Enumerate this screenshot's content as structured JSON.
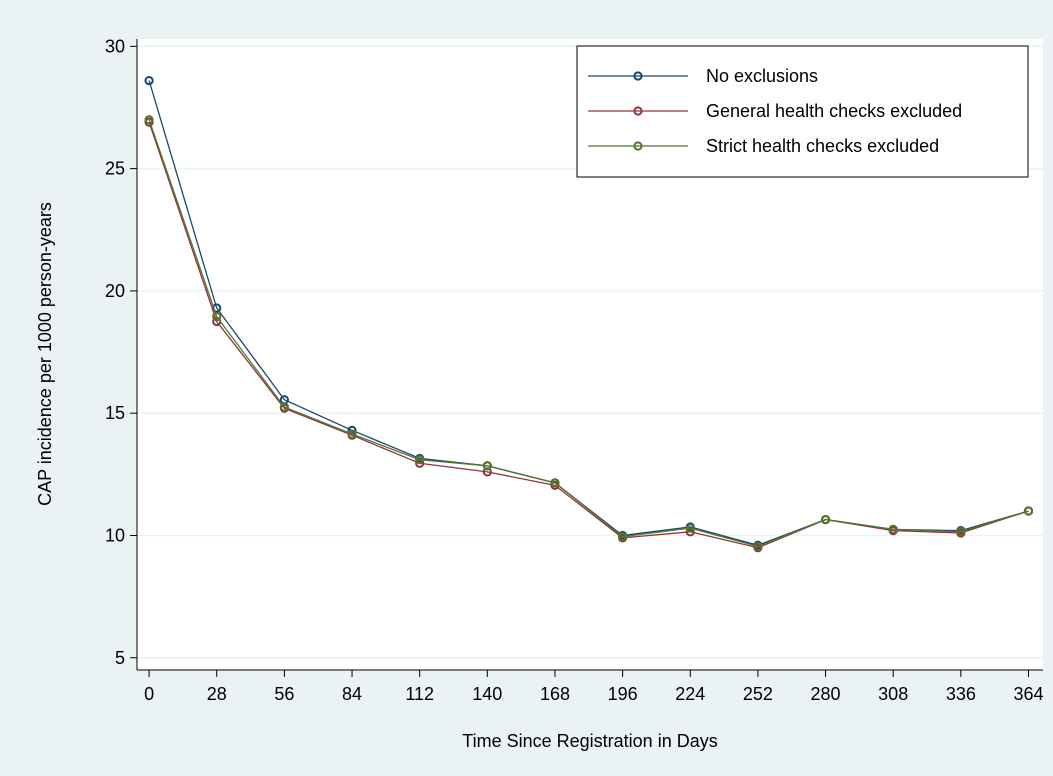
{
  "chart_data": {
    "type": "line",
    "title": "",
    "xlabel": "Time Since Registration in Days",
    "ylabel": "CAP incidence per 1000 person-years",
    "x": [
      0,
      28,
      56,
      84,
      112,
      140,
      168,
      196,
      224,
      252,
      280,
      308,
      336,
      364
    ],
    "xticks": [
      "0",
      "28",
      "56",
      "84",
      "112",
      "140",
      "168",
      "196",
      "224",
      "252",
      "280",
      "308",
      "336",
      "364"
    ],
    "yticks": [
      "5",
      "10",
      "15",
      "20",
      "25",
      "30"
    ],
    "xlim": [
      -5,
      370
    ],
    "ylim": [
      4.5,
      30.3
    ],
    "grid": "horizontal",
    "legend_position": "top-right",
    "series": [
      {
        "name": "No exclusions",
        "color": "#1a476f",
        "values": [
          28.6,
          19.3,
          15.55,
          14.3,
          13.15,
          12.85,
          12.15,
          10.0,
          10.35,
          9.6,
          10.65,
          10.25,
          10.2,
          11.0
        ]
      },
      {
        "name": "General health checks excluded",
        "color": "#90353b",
        "values": [
          26.9,
          18.75,
          15.2,
          14.1,
          12.95,
          12.6,
          12.05,
          9.9,
          10.15,
          9.5,
          10.65,
          10.2,
          10.1,
          11.0
        ]
      },
      {
        "name": "Strict health checks excluded",
        "color": "#55752f",
        "values": [
          27.0,
          18.95,
          15.25,
          14.15,
          13.1,
          12.85,
          12.15,
          9.95,
          10.3,
          9.55,
          10.65,
          10.25,
          10.15,
          11.0
        ]
      }
    ]
  }
}
